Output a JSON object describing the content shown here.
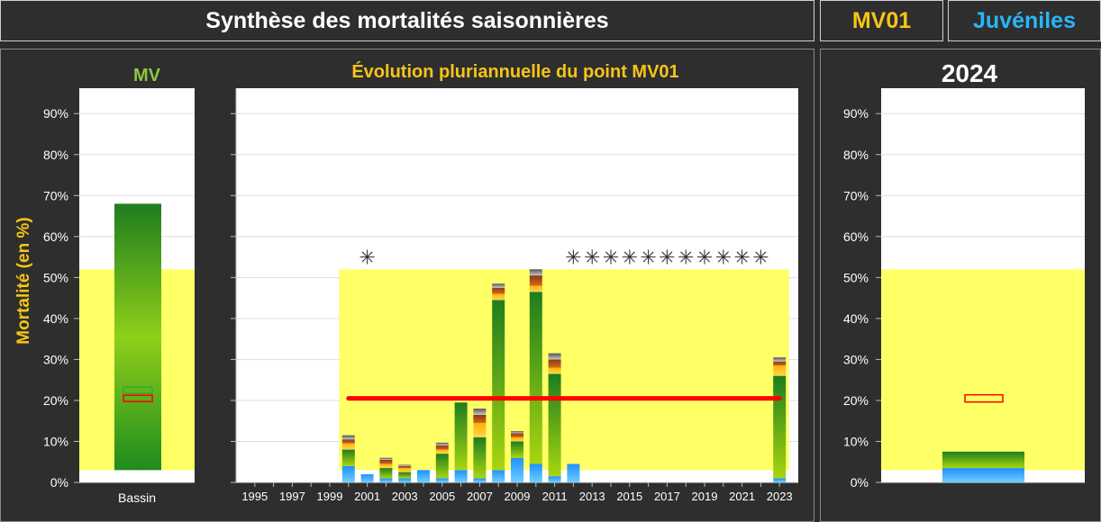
{
  "header": {
    "title": "Synthèse des mortalités saisonnières",
    "site": "MV01",
    "category": "Juvéniles"
  },
  "colors": {
    "site": "#f5c518",
    "category": "#29b6f6",
    "basin_title": "#8dc63f",
    "ref_band": "#ffff66",
    "mean_line": "#ff0000",
    "ylabel": "#f5c518"
  },
  "panels": {
    "basin_title": "MV",
    "evolution_title": "Évolution pluriannuelle du point MV01",
    "year_title": "2024",
    "ylabel": "Mortalité (en %)",
    "basin_xlabel": "Bassin"
  },
  "chart_data": [
    {
      "type": "bar",
      "name": "basin",
      "title": "MV",
      "ylabel": "Mortalité (en %)",
      "categories": [
        "Bassin"
      ],
      "ylim": [
        0,
        90
      ],
      "yticks": [
        "0%",
        "10%",
        "20%",
        "30%",
        "40%",
        "50%",
        "60%",
        "70%",
        "80%",
        "90%"
      ],
      "reference_band": [
        3,
        52
      ],
      "bar_range": [
        3,
        68
      ],
      "markers": [
        {
          "value": 20.5,
          "color": "#ff0000"
        },
        {
          "value": 22.5,
          "color": "#33aa33"
        }
      ]
    },
    {
      "type": "bar",
      "name": "evolution",
      "title": "Évolution pluriannuelle du point MV01",
      "stacked": true,
      "ylim": [
        0,
        90
      ],
      "xlim": [
        1994,
        2024
      ],
      "xticks": [
        "1995",
        "1997",
        "1999",
        "2001",
        "2003",
        "2005",
        "2007",
        "2009",
        "2011",
        "2013",
        "2015",
        "2017",
        "2019",
        "2021",
        "2023"
      ],
      "reference_band": {
        "x": [
          1999.5,
          2023.5
        ],
        "y": [
          3,
          52
        ]
      },
      "mean_line": {
        "x": [
          2000,
          2023
        ],
        "value": 20.5
      },
      "missing_marker_years": [
        2001,
        2012,
        2013,
        2014,
        2015,
        2016,
        2017,
        2018,
        2019,
        2020,
        2021,
        2022
      ],
      "years": [
        2000,
        2001,
        2002,
        2003,
        2004,
        2005,
        2006,
        2007,
        2008,
        2009,
        2010,
        2011,
        2012,
        2023
      ],
      "series": [
        {
          "values": [
            4,
            2,
            1,
            1,
            3,
            1,
            3,
            1,
            3,
            6,
            4.5,
            1.5,
            4.5,
            1
          ]
        },
        {
          "values": [
            4,
            0,
            2.5,
            1.5,
            0,
            6,
            16.5,
            10,
            41.5,
            4,
            42,
            25,
            0,
            25
          ]
        },
        {
          "values": [
            1.5,
            0,
            1,
            1,
            0,
            1,
            0,
            3.5,
            1.5,
            1,
            1.5,
            1.5,
            0,
            2.5
          ]
        },
        {
          "values": [
            1,
            0,
            1,
            0.5,
            0,
            1,
            0,
            2,
            1.5,
            1,
            2.5,
            2,
            0,
            1
          ]
        },
        {
          "values": [
            1,
            0,
            0.5,
            0.3,
            0,
            0.7,
            0,
            1.5,
            1,
            0.5,
            1.5,
            1.5,
            0,
            1
          ]
        }
      ]
    },
    {
      "type": "bar",
      "name": "year",
      "title": "2024",
      "ylim": [
        0,
        90
      ],
      "yticks": [
        "0%",
        "10%",
        "20%",
        "30%",
        "40%",
        "50%",
        "60%",
        "70%",
        "80%",
        "90%"
      ],
      "reference_band": [
        3,
        52
      ],
      "series": [
        {
          "values": [
            3.5
          ]
        },
        {
          "values": [
            4
          ]
        }
      ],
      "markers": [
        {
          "value": 20.5,
          "color": "#ff0000"
        }
      ]
    }
  ]
}
